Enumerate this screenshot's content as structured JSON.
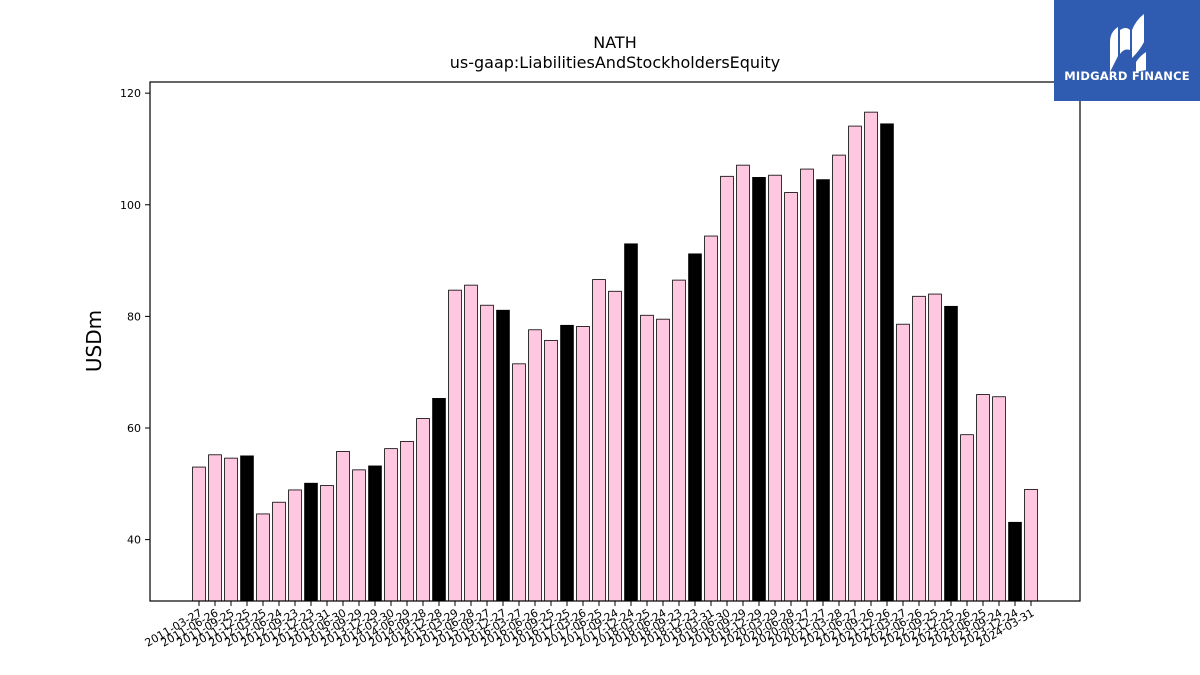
{
  "chart_data": {
    "type": "bar",
    "title": "NATH",
    "subtitle": "us-gaap:LiabilitiesAndStockholdersEquity",
    "xlabel": "",
    "ylabel": "USDm",
    "ylim": [
      29,
      122
    ],
    "yticks": [
      40,
      60,
      80,
      100,
      120
    ],
    "grid": false,
    "colors": {
      "regular": "#ffc8e0",
      "fiscal_year_end": "#000000",
      "edge": "#000000"
    },
    "categories": [
      "2011-03-27",
      "2011-06-26",
      "2011-09-25",
      "2011-12-25",
      "2012-03-25",
      "2012-06-24",
      "2012-09-23",
      "2012-12-23",
      "2013-03-31",
      "2013-06-30",
      "2013-09-29",
      "2013-12-29",
      "2014-03-30",
      "2014-06-29",
      "2014-09-28",
      "2014-12-28",
      "2015-03-29",
      "2015-06-28",
      "2015-09-27",
      "2015-12-27",
      "2016-03-27",
      "2016-06-26",
      "2016-09-25",
      "2016-12-25",
      "2017-03-26",
      "2017-06-25",
      "2017-09-24",
      "2017-12-24",
      "2018-03-25",
      "2018-06-24",
      "2018-09-23",
      "2018-12-23",
      "2019-03-31",
      "2019-06-30",
      "2019-09-29",
      "2019-12-29",
      "2020-03-29",
      "2020-06-28",
      "2020-09-27",
      "2020-12-27",
      "2021-03-28",
      "2021-06-27",
      "2021-09-26",
      "2021-12-26",
      "2022-03-27",
      "2022-06-26",
      "2022-09-25",
      "2022-12-25",
      "2023-03-26",
      "2023-06-25",
      "2023-09-24",
      "2023-12-24",
      "2024-03-31"
    ],
    "values": [
      53.0,
      55.2,
      54.6,
      55.0,
      44.6,
      46.7,
      48.9,
      50.1,
      49.7,
      55.8,
      52.5,
      53.2,
      56.3,
      57.6,
      61.7,
      65.3,
      84.7,
      85.6,
      82.0,
      81.1,
      71.5,
      77.6,
      75.7,
      78.4,
      78.2,
      86.6,
      84.5,
      93.0,
      80.2,
      79.5,
      86.5,
      91.2,
      94.4,
      105.1,
      107.1,
      104.9,
      105.3,
      102.2,
      106.4,
      104.5,
      108.9,
      114.1,
      116.6,
      114.5,
      78.6,
      83.6,
      84.0,
      81.8,
      58.8,
      66.0,
      65.6,
      43.1,
      49.0
    ],
    "fiscal_year_end": [
      false,
      false,
      false,
      true,
      false,
      false,
      false,
      true,
      false,
      false,
      false,
      true,
      false,
      false,
      false,
      true,
      false,
      false,
      false,
      true,
      false,
      false,
      false,
      true,
      false,
      false,
      false,
      true,
      false,
      false,
      false,
      true,
      false,
      false,
      false,
      true,
      false,
      false,
      false,
      true,
      false,
      false,
      false,
      true,
      false,
      false,
      false,
      true,
      false,
      false,
      false,
      true,
      false
    ]
  },
  "logo": {
    "text": "MIDGARD FINANCE"
  }
}
